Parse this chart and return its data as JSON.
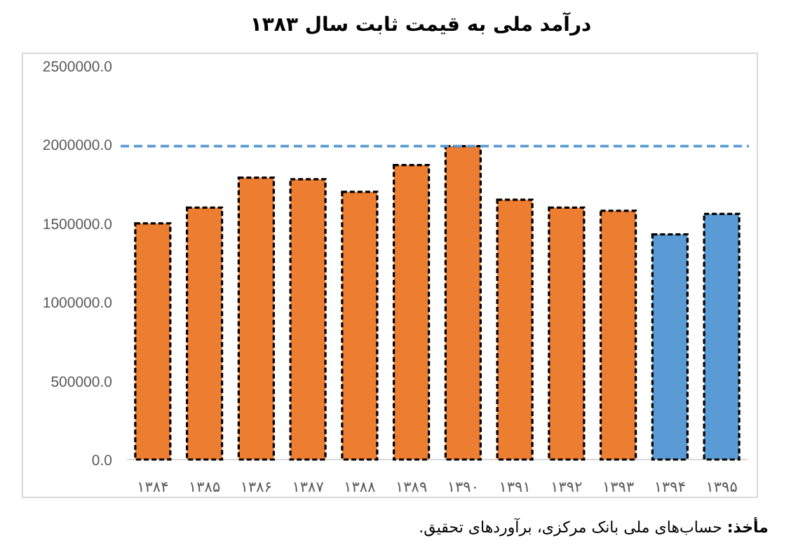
{
  "chart_data": {
    "type": "bar",
    "title": "درآمد ملی به قیمت ثابت سال ۱۳۸۳",
    "categories": [
      "۱۳۸۴",
      "۱۳۸۵",
      "۱۳۸۶",
      "۱۳۸۷",
      "۱۳۸۸",
      "۱۳۸۹",
      "۱۳۹۰",
      "۱۳۹۱",
      "۱۳۹۲",
      "۱۳۹۳",
      "۱۳۹۴",
      "۱۳۹۵"
    ],
    "values": [
      1500000,
      1600000,
      1790000,
      1780000,
      1700000,
      1870000,
      1990000,
      1650000,
      1600000,
      1580000,
      1430000,
      1560000
    ],
    "colors": [
      "#ed7d31",
      "#ed7d31",
      "#ed7d31",
      "#ed7d31",
      "#ed7d31",
      "#ed7d31",
      "#ed7d31",
      "#ed7d31",
      "#ed7d31",
      "#ed7d31",
      "#5b9bd5",
      "#5b9bd5"
    ],
    "ylim": [
      0,
      2500000
    ],
    "yticks": [
      {
        "value": 0,
        "label": "0.0"
      },
      {
        "value": 500000,
        "label": "500000.0"
      },
      {
        "value": 1000000,
        "label": "1000000.0"
      },
      {
        "value": 1500000,
        "label": "1500000.0"
      },
      {
        "value": 2000000,
        "label": "2000000.0"
      },
      {
        "value": 2500000,
        "label": "2500000.0"
      }
    ],
    "ref_lines": [
      {
        "axis": "y",
        "value": 1990000,
        "color": "#5b9bd5",
        "line_style": "dashed"
      }
    ],
    "annotations": [
      "**مأخذ:** حساب‌های ملی بانک مرکزی، برآوردهای تحقیق."
    ]
  }
}
